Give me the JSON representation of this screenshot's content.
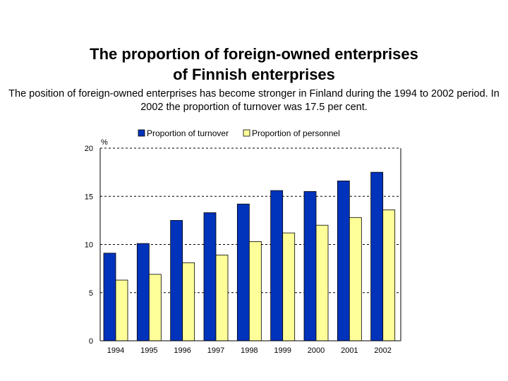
{
  "header": {
    "title_line1": "The proportion of foreign-owned enterprises",
    "title_line2": "of Finnish enterprises",
    "subtitle": "The position of foreign-owned enterprises has become stronger in Finland during the 1994 to 2002 period.  In 2002 the proportion of turnover was 17.5 per cent."
  },
  "chart_data": {
    "type": "bar",
    "title": "",
    "xlabel": "",
    "ylabel": "%",
    "ylim": [
      0,
      20
    ],
    "yticks": [
      0,
      5,
      10,
      15,
      20
    ],
    "grid": true,
    "legend_position": "top",
    "categories": [
      "1994",
      "1995",
      "1996",
      "1997",
      "1998",
      "1999",
      "2000",
      "2001",
      "2002"
    ],
    "series": [
      {
        "name": "Proportion of turnover",
        "color": "#0033bb",
        "values": [
          9.1,
          10.1,
          12.5,
          13.3,
          14.2,
          15.6,
          15.5,
          16.6,
          17.5
        ]
      },
      {
        "name": "Proportion of personnel",
        "color": "#ffff99",
        "values": [
          6.3,
          6.9,
          8.1,
          8.9,
          10.3,
          11.2,
          12.0,
          12.8,
          13.6
        ]
      }
    ]
  }
}
